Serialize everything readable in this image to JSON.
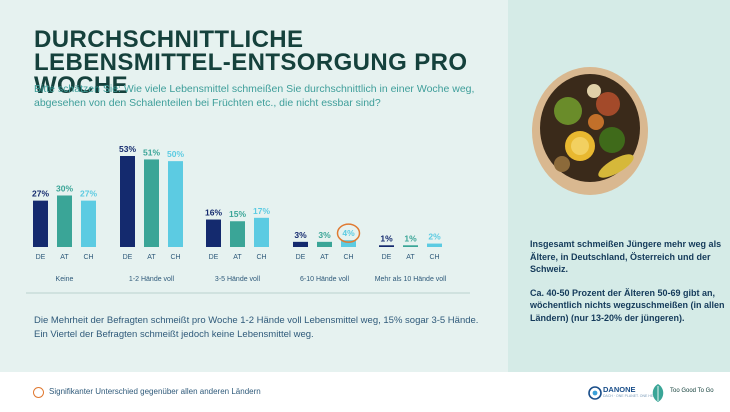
{
  "title": "DURCHSCHNITTLICHE LEBENSMITTEL-ENTSORGUNG PRO WOCHE",
  "question": "Bitte schätzen Sie: Wie viele Lebensmittel schmeißen Sie durchschnittlich in einer Woche weg, abgesehen von den Schalenteilen bei Früchten etc., die nicht essbar sind?",
  "summary": "Die Mehrheit der Befragten schmeißt pro Woche 1-2 Hände voll Lebensmittel weg, 15% sogar 3-5 Hände. Ein Viertel der Befragten schmeißt jedoch keine Lebensmittel weg.",
  "insight": {
    "p1": "Insgesamt schmeißen Jüngere mehr weg als Ältere, in Deutschland, Österreich und der Schweiz.",
    "p2": "Ca. 40-50 Prozent der Älteren 50-69 gibt an, wöchentlich nichts wegzuschmeißen (in allen Ländern) (nur 13-20% der jüngeren)."
  },
  "footer": {
    "legend": "Signifikanter Unterschied gegenüber allen anderen Ländern",
    "danone": "DANONE",
    "danone_sub": "DACH · ONE PLANET. ONE HEALTH",
    "tgtg": "Too Good To Go"
  },
  "colors": {
    "DE": "#142a6e",
    "AT": "#3aa597",
    "CH": "#5ccbe2",
    "highlight": "#e07a32"
  },
  "chart_data": {
    "type": "bar",
    "categories": [
      "Keine",
      "1-2 Hände voll",
      "3-5 Hände voll",
      "6-10 Hände voll",
      "Mehr als 10 Hände voll"
    ],
    "sub_categories": [
      "DE",
      "AT",
      "CH"
    ],
    "series": [
      {
        "name": "DE",
        "values": [
          27,
          53,
          16,
          3,
          1
        ]
      },
      {
        "name": "AT",
        "values": [
          30,
          51,
          15,
          3,
          1
        ]
      },
      {
        "name": "CH",
        "values": [
          27,
          50,
          17,
          4,
          2
        ]
      }
    ],
    "value_suffix": "%",
    "highlighted": [
      {
        "series": "CH",
        "category": "6-10 Hände voll"
      }
    ],
    "ylim": [
      0,
      55
    ]
  }
}
